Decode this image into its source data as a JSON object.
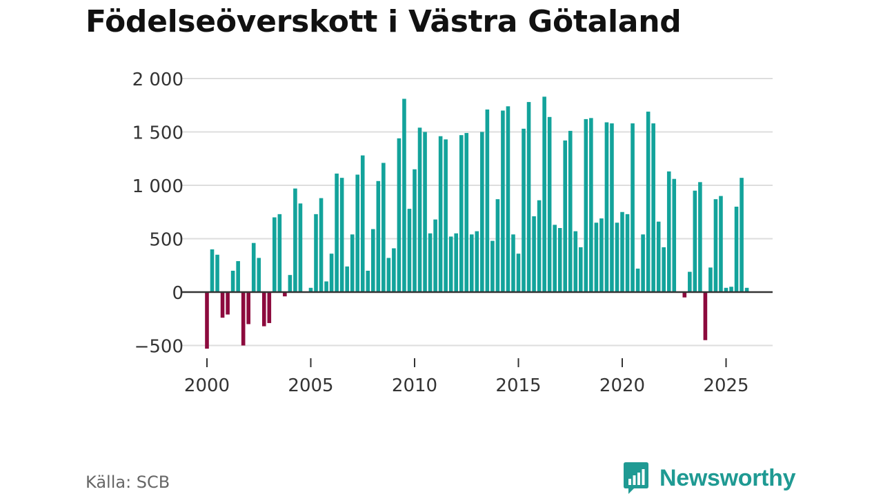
{
  "chart_data": {
    "type": "bar",
    "title": "Födelseöverskott i Västra Götaland",
    "xlabel": "",
    "ylabel": "",
    "ylim": [
      -600,
      2000
    ],
    "y_ticks": [
      2000,
      1500,
      1000,
      500,
      0,
      -500
    ],
    "y_tick_labels": [
      "2 000",
      "1 500",
      "1 000",
      "500",
      "0",
      "−500"
    ],
    "x_ticks": [
      2000,
      2005,
      2010,
      2015,
      2020,
      2025
    ],
    "x_tick_labels": [
      "2000",
      "2005",
      "2010",
      "2015",
      "2020",
      "2025"
    ],
    "x_start": 2000.0,
    "period_step_years": 0.25,
    "positive_color": "#13a39b",
    "negative_color": "#8c0a3d",
    "values": [
      -530,
      400,
      350,
      -240,
      -210,
      200,
      290,
      -500,
      -300,
      460,
      320,
      -320,
      -290,
      700,
      730,
      -40,
      160,
      970,
      830,
      0,
      40,
      730,
      880,
      100,
      360,
      1110,
      1070,
      240,
      540,
      1100,
      1280,
      200,
      590,
      1040,
      1210,
      320,
      410,
      1440,
      1810,
      780,
      1150,
      1540,
      1500,
      550,
      680,
      1460,
      1430,
      520,
      550,
      1470,
      1490,
      540,
      570,
      1500,
      1710,
      480,
      870,
      1700,
      1740,
      540,
      360,
      1530,
      1780,
      710,
      860,
      1830,
      1640,
      630,
      600,
      1420,
      1510,
      570,
      420,
      1620,
      1630,
      650,
      690,
      1590,
      1580,
      650,
      750,
      730,
      1580,
      220,
      540,
      1690,
      1580,
      660,
      420,
      1130,
      1060,
      0,
      -50,
      190,
      950,
      1030,
      -450,
      230,
      870,
      900,
      40,
      50,
      800,
      1070,
      40
    ]
  },
  "source": "Källa: SCB",
  "brand": {
    "name": "Newsworthy",
    "icon": "bar-chart-speech-bubble-icon",
    "color": "#1f9a93"
  },
  "colors": {
    "grid": "#dddddd",
    "zero_line": "#333333",
    "text": "#333333"
  }
}
